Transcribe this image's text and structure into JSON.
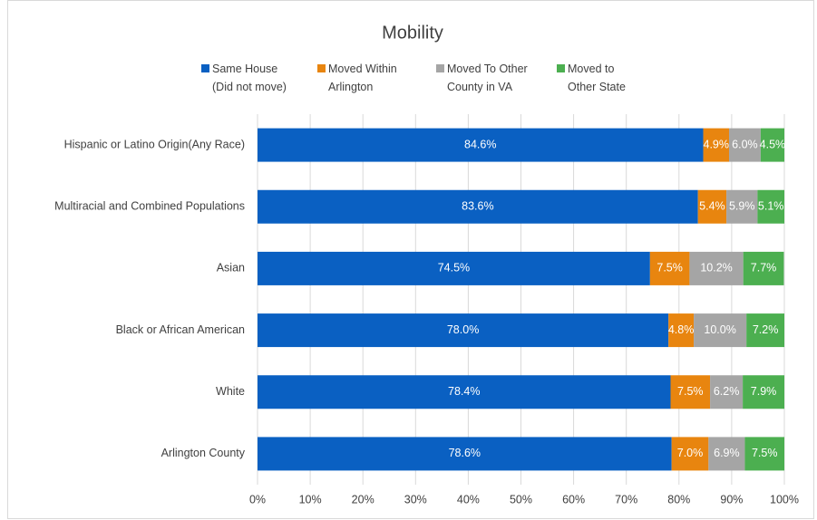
{
  "chart_data": {
    "type": "stacked_barh",
    "title": "Mobility",
    "categories": [
      "Hispanic or Latino Origin(Any Race)",
      "Multiracial and Combined Populations",
      "Asian",
      "Black or African American",
      "White",
      "Arlington County"
    ],
    "series": [
      {
        "name": "Same House\n(Did not move)",
        "color": "#0a60c2",
        "values": [
          84.6,
          83.6,
          74.5,
          78.0,
          78.4,
          78.6
        ],
        "value_labels": [
          "84.6%",
          "83.6%",
          "74.5%",
          "78.0%",
          "78.4%",
          "78.6%"
        ]
      },
      {
        "name": "Moved Within\nArlington",
        "color": "#e8850f",
        "values": [
          4.9,
          5.4,
          7.5,
          4.8,
          7.5,
          7.0
        ],
        "value_labels": [
          "4.9%",
          "5.4%",
          "7.5%",
          "4.8%",
          "7.5%",
          "7.0%"
        ]
      },
      {
        "name": "Moved To Other\nCounty  in VA",
        "color": "#a5a5a5",
        "values": [
          6.0,
          5.9,
          10.2,
          10.0,
          6.2,
          6.9
        ],
        "value_labels": [
          "6.0%",
          "5.9%",
          "10.2%",
          "10.0%",
          "6.2%",
          "6.9%"
        ]
      },
      {
        "name": "Moved to\nOther State",
        "color": "#4caf50",
        "values": [
          4.5,
          5.1,
          7.7,
          7.2,
          7.9,
          7.5
        ],
        "value_labels": [
          "4.5%",
          "5.1%",
          "7.7%",
          "7.2%",
          "7.9%",
          "7.5%"
        ]
      }
    ],
    "xlim": [
      0,
      100
    ],
    "xticks": [
      {
        "value": 0,
        "label": "0%"
      },
      {
        "value": 10,
        "label": "10%"
      },
      {
        "value": 20,
        "label": "20%"
      },
      {
        "value": 30,
        "label": "30%"
      },
      {
        "value": 40,
        "label": "40%"
      },
      {
        "value": 50,
        "label": "50%"
      },
      {
        "value": 60,
        "label": "60%"
      },
      {
        "value": 70,
        "label": "70%"
      },
      {
        "value": 80,
        "label": "80%"
      },
      {
        "value": 90,
        "label": "90%"
      },
      {
        "value": 100,
        "label": "100%"
      }
    ],
    "grid": true,
    "legend": "top"
  }
}
